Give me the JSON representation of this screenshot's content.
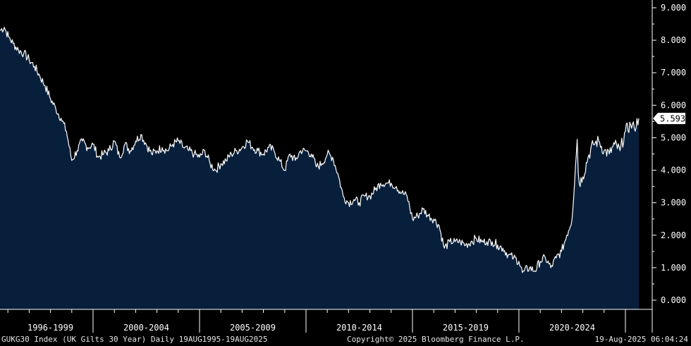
{
  "chart_data": {
    "type": "area",
    "title": "",
    "xlabel": "",
    "ylabel": "",
    "ylim": [
      0,
      9
    ],
    "xlim": [
      "1995-08-19",
      "2025-08-19"
    ],
    "y_ticks": [
      "0.000",
      "1.000",
      "2.000",
      "3.000",
      "4.000",
      "5.000",
      "6.000",
      "7.000",
      "8.000",
      "9.000"
    ],
    "x_period_labels": [
      "1996-1999",
      "2000-2004",
      "2005-2009",
      "2010-2014",
      "2015-2019",
      "2020-2024"
    ],
    "grid": false,
    "last_value_label": "5.593",
    "colors": {
      "background": "#000000",
      "fill": "#071f3b",
      "line": "#ffffff",
      "axis": "#ffffff"
    },
    "series": [
      {
        "x": [
          "1995-08-19",
          "1995-11-01",
          "1996-01-15",
          "1996-04-01",
          "1996-07-01",
          "1996-10-01",
          "1997-01-01",
          "1997-04-01",
          "1997-07-01",
          "1997-10-01",
          "1998-01-01",
          "1998-04-01",
          "1998-07-01",
          "1998-10-01",
          "1999-01-01",
          "1999-04-01",
          "1999-07-01",
          "1999-10-01",
          "2000-01-01",
          "2000-04-01",
          "2000-07-01",
          "2000-10-01",
          "2001-01-01",
          "2001-04-01",
          "2001-07-01",
          "2001-10-01",
          "2002-01-01",
          "2002-04-01",
          "2002-07-01",
          "2002-10-01",
          "2003-01-01",
          "2003-04-01",
          "2003-07-01",
          "2003-10-01",
          "2004-01-01",
          "2004-04-01",
          "2004-07-01",
          "2004-10-01",
          "2005-01-01",
          "2005-04-01",
          "2005-07-01",
          "2005-10-01",
          "2006-01-01",
          "2006-04-01",
          "2006-07-01",
          "2006-10-01",
          "2007-01-01",
          "2007-04-01",
          "2007-07-01",
          "2007-10-01",
          "2008-01-01",
          "2008-04-01",
          "2008-07-01",
          "2008-10-01",
          "2009-01-01",
          "2009-04-01",
          "2009-07-01",
          "2009-10-01",
          "2010-01-01",
          "2010-04-01",
          "2010-07-01",
          "2010-10-01",
          "2011-01-01",
          "2011-04-01",
          "2011-07-01",
          "2011-10-01",
          "2012-01-01",
          "2012-04-01",
          "2012-07-01",
          "2012-10-01",
          "2013-01-01",
          "2013-04-01",
          "2013-07-01",
          "2013-10-01",
          "2014-01-01",
          "2014-04-01",
          "2014-07-01",
          "2014-10-01",
          "2015-01-01",
          "2015-04-01",
          "2015-07-01",
          "2015-10-01",
          "2016-01-01",
          "2016-04-01",
          "2016-07-01",
          "2016-10-01",
          "2017-01-01",
          "2017-04-01",
          "2017-07-01",
          "2017-10-01",
          "2018-01-01",
          "2018-04-01",
          "2018-07-01",
          "2018-10-01",
          "2019-01-01",
          "2019-04-01",
          "2019-07-01",
          "2019-10-01",
          "2020-01-01",
          "2020-03-01",
          "2020-04-01",
          "2020-07-01",
          "2020-10-01",
          "2021-01-01",
          "2021-04-01",
          "2021-07-01",
          "2021-10-01",
          "2022-01-01",
          "2022-04-01",
          "2022-07-01",
          "2022-09-27",
          "2022-10-15",
          "2022-11-01",
          "2023-01-01",
          "2023-04-01",
          "2023-07-01",
          "2023-10-01",
          "2024-01-01",
          "2024-04-01",
          "2024-07-01",
          "2024-10-01",
          "2025-01-01",
          "2025-04-01",
          "2025-06-01",
          "2025-08-19"
        ],
        "values": [
          8.3,
          8.4,
          8.1,
          7.9,
          7.7,
          7.6,
          7.4,
          7.2,
          6.9,
          6.6,
          6.2,
          5.9,
          5.6,
          5.2,
          4.3,
          4.6,
          4.9,
          4.7,
          4.8,
          4.4,
          4.5,
          4.6,
          4.9,
          4.4,
          4.8,
          4.6,
          4.9,
          5.1,
          4.8,
          4.5,
          4.6,
          4.7,
          4.6,
          4.8,
          4.9,
          4.7,
          4.6,
          4.5,
          4.4,
          4.6,
          4.2,
          4.0,
          4.2,
          4.3,
          4.5,
          4.6,
          4.7,
          4.9,
          4.7,
          4.6,
          4.5,
          4.7,
          4.6,
          4.3,
          4.0,
          4.5,
          4.3,
          4.6,
          4.6,
          4.5,
          4.1,
          4.2,
          4.5,
          4.4,
          3.9,
          3.2,
          3.0,
          3.1,
          3.0,
          3.2,
          3.2,
          3.4,
          3.6,
          3.6,
          3.6,
          3.5,
          3.3,
          3.2,
          2.5,
          2.6,
          2.8,
          2.6,
          2.5,
          2.3,
          1.6,
          1.8,
          1.8,
          1.8,
          1.7,
          1.8,
          1.9,
          1.8,
          1.8,
          1.8,
          1.7,
          1.6,
          1.4,
          1.3,
          1.2,
          0.85,
          0.9,
          1.0,
          0.9,
          1.2,
          1.3,
          1.0,
          1.3,
          1.5,
          2.0,
          2.5,
          4.95,
          3.9,
          3.6,
          3.8,
          4.4,
          4.8,
          4.9,
          4.6,
          4.5,
          4.8,
          4.6,
          5.2,
          5.4,
          5.3,
          5.593
        ]
      }
    ]
  },
  "footer": {
    "left": "GUKG30 Index (UK Gilts 30 Year)  Daily 19AUG1995-19AUG2025",
    "center": "Copyright© 2025 Bloomberg Finance L.P.",
    "right": "19-Aug-2025 06:04:24"
  }
}
